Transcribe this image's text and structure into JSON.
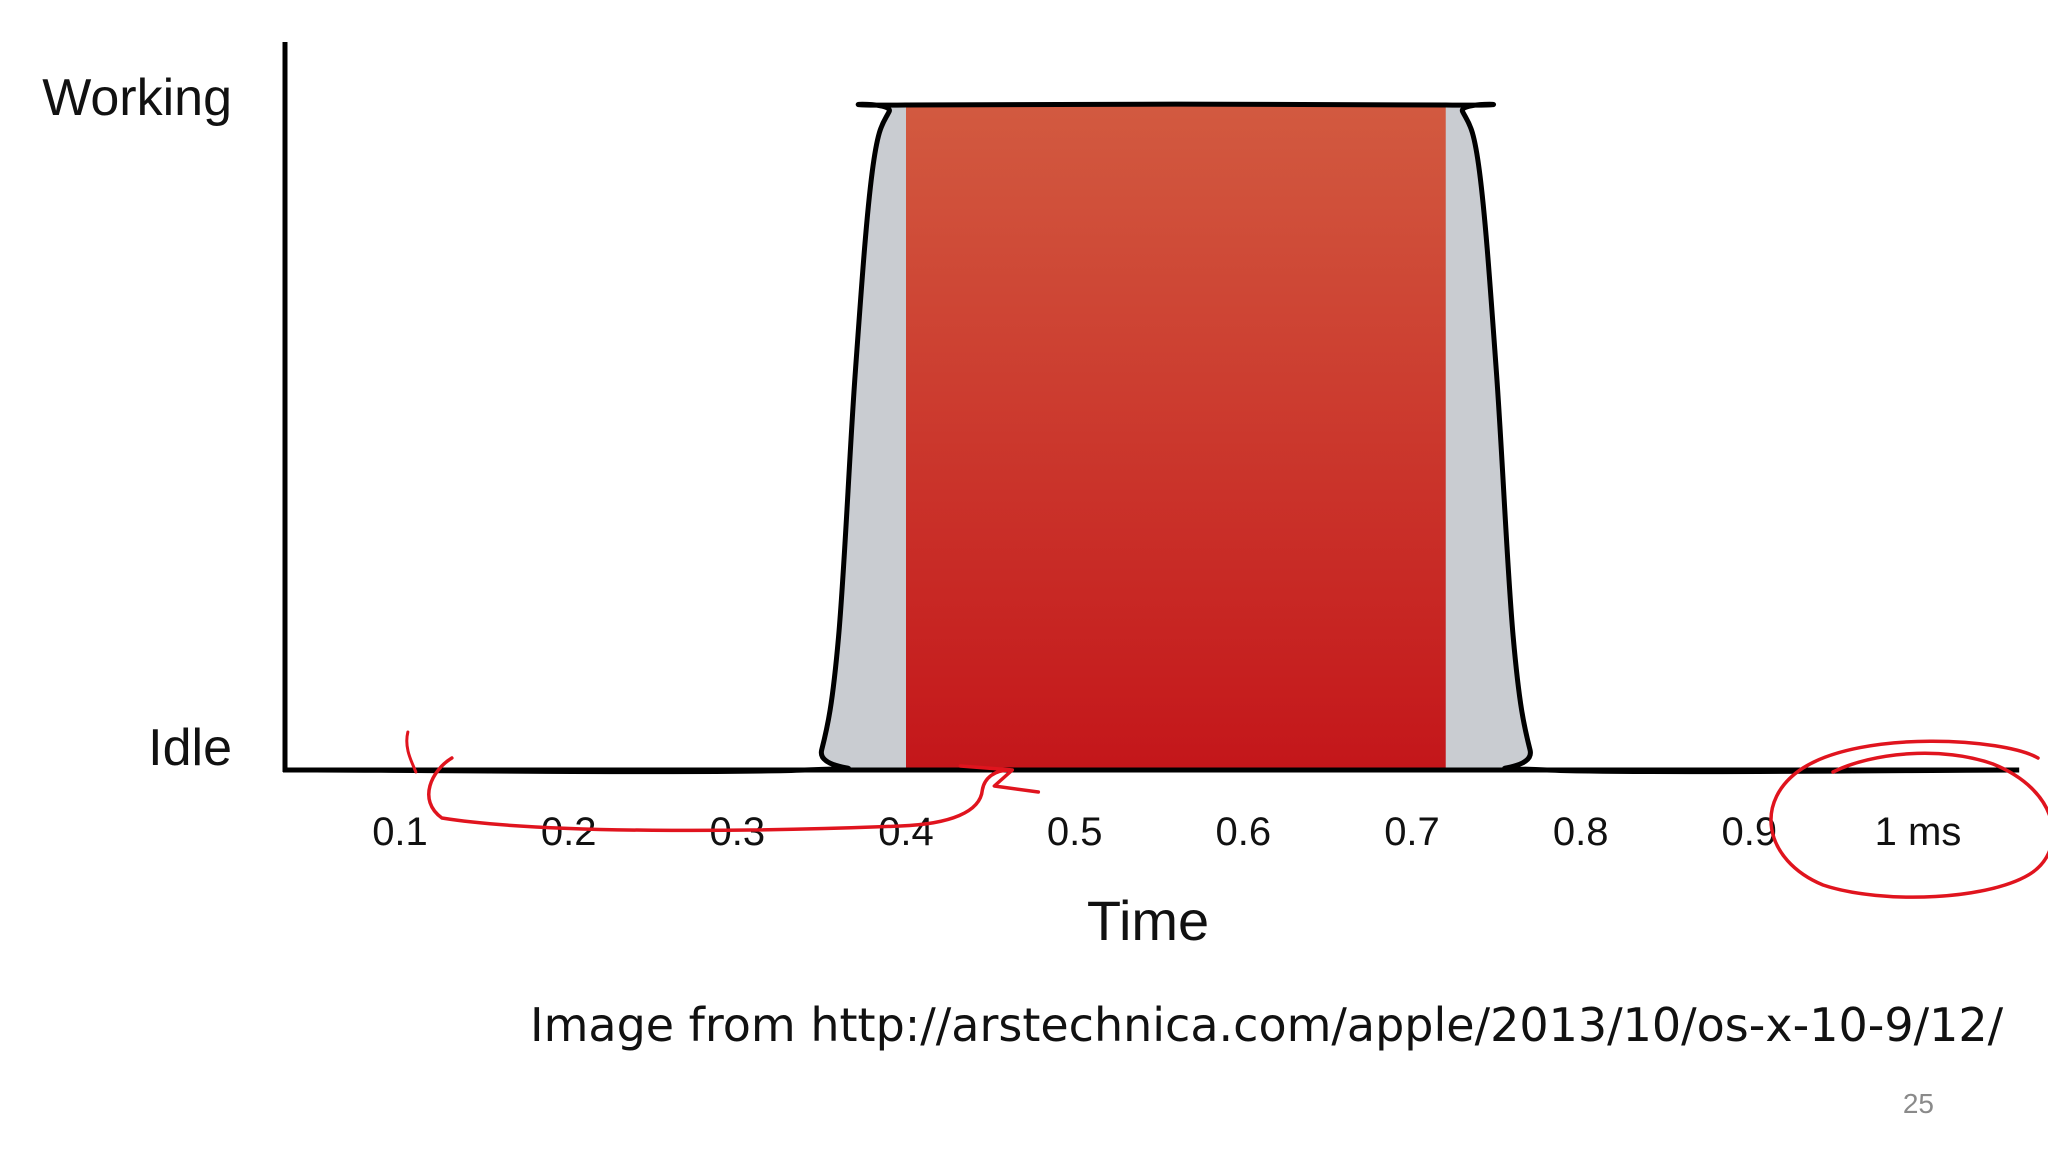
{
  "chart_data": {
    "type": "area",
    "title": "",
    "xlabel": "Time",
    "ylabel": "",
    "x_tick_labels": [
      "0.1",
      "0.2",
      "0.3",
      "0.4",
      "0.5",
      "0.6",
      "0.7",
      "0.8",
      "0.9",
      "1 ms"
    ],
    "y_tick_labels": [
      "Idle",
      "Working"
    ],
    "xlim": [
      0.05,
      1.06
    ],
    "ylim": [
      0,
      1
    ],
    "grid": false,
    "series": [
      {
        "x": [
          0.05,
          0.34,
          0.35,
          0.36,
          0.37,
          0.38,
          0.39,
          0.4,
          0.72,
          0.73,
          0.74,
          0.75,
          0.76,
          0.77,
          0.78,
          1.06
        ],
        "y": [
          0,
          0,
          0.03,
          0.2,
          0.6,
          0.9,
          0.99,
          1,
          1,
          0.99,
          0.9,
          0.6,
          0.2,
          0.03,
          0,
          0
        ],
        "color": "#c9ccd1"
      }
    ],
    "highlight_band": {
      "x_start": 0.4,
      "x_end": 0.72,
      "color_top": "#d25a40",
      "color_bottom": "#c4161a"
    }
  },
  "annotations": {
    "ink_color": "#e0141e",
    "arrow_from_x": 0.11,
    "arrow_to_x": 0.45,
    "circled_tick": "1 ms"
  },
  "caption": "Image from http://arstechnica.com/apple/2013/10/os-x-10-9/12/",
  "page_number": "25"
}
